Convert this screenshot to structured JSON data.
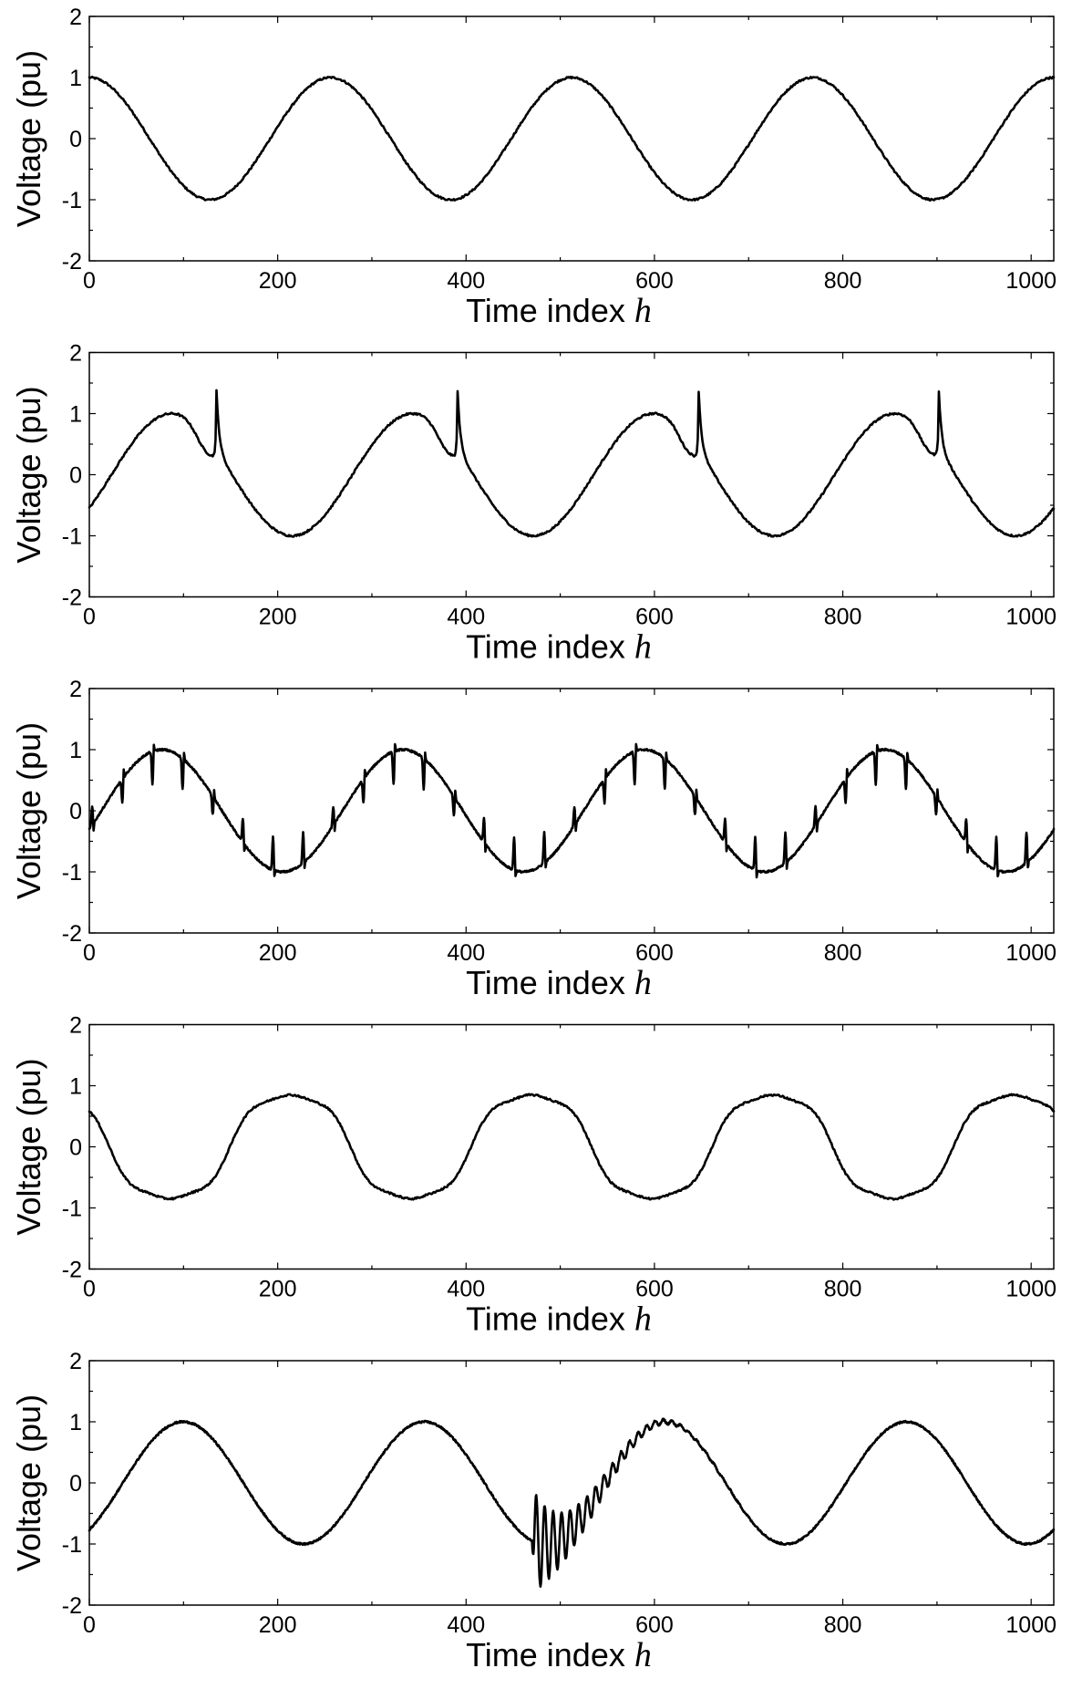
{
  "chart_data": [
    {
      "type": "line",
      "disturbance": "normal",
      "xlabel": "Time index",
      "xlabel_var": "h",
      "ylabel": "Voltage (pu)",
      "xlim": [
        0,
        1024
      ],
      "ylim": [
        -2,
        2
      ],
      "xticks": [
        0,
        200,
        400,
        600,
        800,
        1000
      ],
      "yticks": [
        -2,
        -1,
        0,
        1,
        2
      ],
      "series": [
        {
          "name": "voltage",
          "amplitude": 1.0,
          "period": 256,
          "phase_deg": 90
        }
      ]
    },
    {
      "type": "line",
      "disturbance": "transient spikes",
      "xlabel": "Time index",
      "xlabel_var": "h",
      "ylabel": "Voltage (pu)",
      "xlim": [
        0,
        1024
      ],
      "ylim": [
        -2,
        2
      ],
      "xticks": [
        0,
        200,
        400,
        600,
        800,
        1000
      ],
      "yticks": [
        -2,
        -1,
        0,
        1,
        2
      ],
      "series": [
        {
          "name": "voltage",
          "amplitude": 1.0,
          "period": 256,
          "phase_deg": -33,
          "spike_index": [
            135,
            391,
            647,
            902
          ],
          "spike_peak": 1.37
        }
      ]
    },
    {
      "type": "line",
      "disturbance": "notching",
      "xlabel": "Time index",
      "xlabel_var": "h",
      "ylabel": "Voltage (pu)",
      "xlim": [
        0,
        1024
      ],
      "ylim": [
        -2,
        2
      ],
      "xticks": [
        0,
        200,
        400,
        600,
        800,
        1000
      ],
      "yticks": [
        -2,
        -1,
        0,
        1,
        2
      ],
      "series": [
        {
          "name": "voltage",
          "amplitude": 1.0,
          "period": 256,
          "phase_deg": -18,
          "notch_spacing": 32,
          "notch_depth": 0.55
        }
      ]
    },
    {
      "type": "line",
      "disturbance": "harmonics",
      "xlabel": "Time index",
      "xlabel_var": "h",
      "ylabel": "Voltage (pu)",
      "xlim": [
        0,
        1024
      ],
      "ylim": [
        -2,
        2
      ],
      "xticks": [
        0,
        200,
        400,
        600,
        800,
        1000
      ],
      "yticks": [
        -2,
        -1,
        0,
        1,
        2
      ],
      "series": [
        {
          "name": "voltage",
          "amplitude": 0.92,
          "period": 256,
          "phase_deg": 150,
          "third_harmonic": 0.11
        }
      ]
    },
    {
      "type": "line",
      "disturbance": "oscillatory transient",
      "xlabel": "Time index",
      "xlabel_var": "h",
      "ylabel": "Voltage (pu)",
      "xlim": [
        0,
        1024
      ],
      "ylim": [
        -2,
        2
      ],
      "xticks": [
        0,
        200,
        400,
        600,
        800,
        1000
      ],
      "yticks": [
        -2,
        -1,
        0,
        1,
        2
      ],
      "series": [
        {
          "name": "voltage",
          "amplitude": 1.0,
          "period": 256,
          "phase_deg": -50,
          "transient_start": 470,
          "transient_amplitude": 0.85,
          "transient_period": 9
        }
      ]
    }
  ]
}
